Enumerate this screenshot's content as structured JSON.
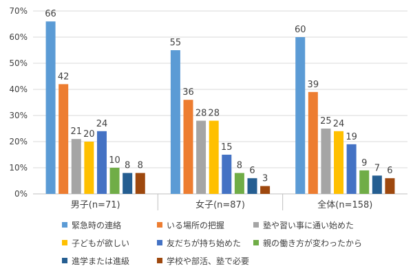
{
  "chart_data": {
    "type": "bar",
    "categories": [
      "男子(n=71)",
      "女子(n=87)",
      "全体(n=158)"
    ],
    "series": [
      {
        "name": "緊急時の連絡",
        "color": "#5B9BD5",
        "values": [
          66,
          55,
          60
        ]
      },
      {
        "name": "いる場所の把握",
        "color": "#ED7D31",
        "values": [
          42,
          36,
          39
        ]
      },
      {
        "name": "塾や習い事に通い始めた",
        "color": "#A5A5A5",
        "values": [
          21,
          28,
          25
        ]
      },
      {
        "name": "子どもが欲しい",
        "color": "#FFC000",
        "values": [
          20,
          28,
          24
        ]
      },
      {
        "name": "友だちが持ち始めた",
        "color": "#4472C4",
        "values": [
          24,
          15,
          19
        ]
      },
      {
        "name": "親の働き方が変わったから",
        "color": "#70AD47",
        "values": [
          10,
          8,
          9
        ]
      },
      {
        "name": "進学または進級",
        "color": "#255E91",
        "values": [
          8,
          6,
          7
        ]
      },
      {
        "name": "学校や部活、塾で必要",
        "color": "#9E480E",
        "values": [
          8,
          3,
          6
        ]
      }
    ],
    "yticks": [
      "0%",
      "10%",
      "20%",
      "30%",
      "40%",
      "50%",
      "60%",
      "70%"
    ],
    "ylim": [
      0,
      70
    ],
    "grid": true,
    "legend_position": "bottom"
  }
}
